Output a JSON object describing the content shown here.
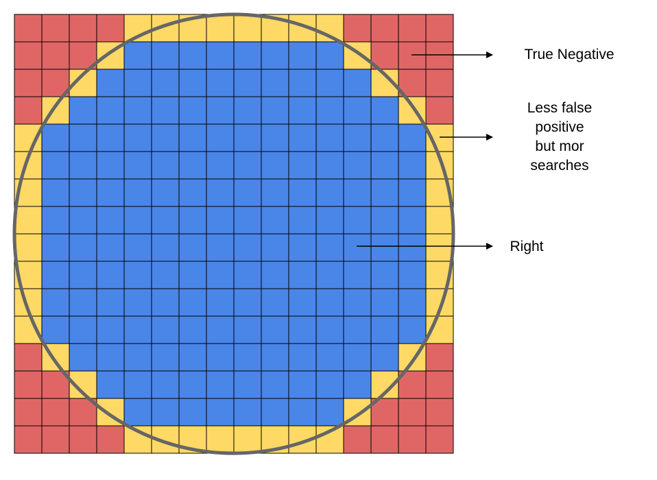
{
  "diagram": {
    "grid_size": 16,
    "colors": {
      "true_negative": "#E06666",
      "boundary": "#FFD966",
      "inside": "#4A86E8",
      "grid_line": "#000000",
      "circle": "#666666",
      "arrow": "#000000"
    },
    "cell_classes": [
      "RRRRYYYYYYYYRRRR",
      "RRRYBBBBBBBBYRRR",
      "RRYBBBBBBBBBBYRR",
      "RYBBBBBBBBBBBBYR",
      "YBBBBBBBBBBBBBBY",
      "YBBBBBBBBBBBBBBY",
      "YBBBBBBBBBBBBBBY",
      "YBBBBBBBBBBBBBBY",
      "YBBBBBBBBBBBBBBY",
      "YBBBBBBBBBBBBBBY",
      "YBBBBBBBBBBBBBBY",
      "YBBBBBBBBBBBBBBY",
      "RYBBBBBBBBBBBBYR",
      "RRYBBBBBBBBBBYRR",
      "RRRYBBBBBBBBYRRR",
      "RRRRYYYYYYYYRRRR"
    ]
  },
  "labels": {
    "true_negative": "True Negative",
    "less_false_positive": [
      "Less false",
      "positive",
      "but mor",
      "searches"
    ],
    "right": "Right"
  }
}
